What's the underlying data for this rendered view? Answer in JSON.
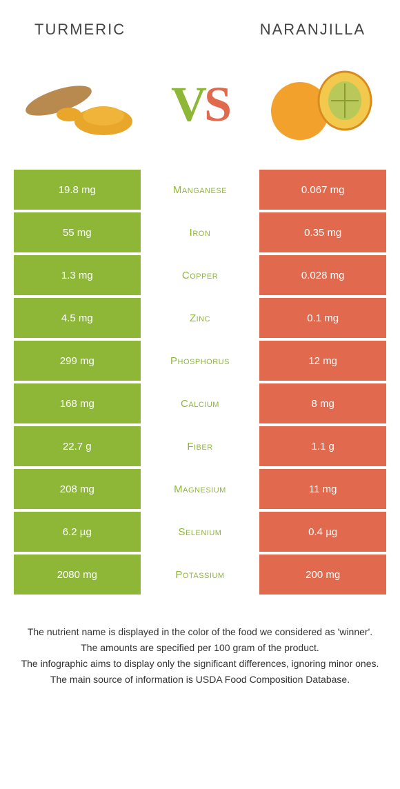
{
  "header": {
    "left_title": "Turmeric",
    "right_title": "Naranjilla"
  },
  "vs": {
    "v": "V",
    "s": "S"
  },
  "colors": {
    "left": "#8eb738",
    "right": "#e0694e",
    "text_left_winner": "#8eb738",
    "text_right_winner": "#e0694e"
  },
  "rows": [
    {
      "nutrient": "Manganese",
      "left": "19.8 mg",
      "right": "0.067 mg",
      "winner": "left"
    },
    {
      "nutrient": "Iron",
      "left": "55 mg",
      "right": "0.35 mg",
      "winner": "left"
    },
    {
      "nutrient": "Copper",
      "left": "1.3 mg",
      "right": "0.028 mg",
      "winner": "left"
    },
    {
      "nutrient": "Zinc",
      "left": "4.5 mg",
      "right": "0.1 mg",
      "winner": "left"
    },
    {
      "nutrient": "Phosphorus",
      "left": "299 mg",
      "right": "12 mg",
      "winner": "left"
    },
    {
      "nutrient": "Calcium",
      "left": "168 mg",
      "right": "8 mg",
      "winner": "left"
    },
    {
      "nutrient": "Fiber",
      "left": "22.7 g",
      "right": "1.1 g",
      "winner": "left"
    },
    {
      "nutrient": "Magnesium",
      "left": "208 mg",
      "right": "11 mg",
      "winner": "left"
    },
    {
      "nutrient": "Selenium",
      "left": "6.2 µg",
      "right": "0.4 µg",
      "winner": "left"
    },
    {
      "nutrient": "Potassium",
      "left": "2080 mg",
      "right": "200 mg",
      "winner": "left"
    }
  ],
  "footnotes": [
    "The nutrient name is displayed in the color of the food we considered as 'winner'.",
    "The amounts are specified per 100 gram of the product.",
    "The infographic aims to display only the significant differences, ignoring minor ones.",
    "The main source of information is USDA Food Composition Database."
  ]
}
